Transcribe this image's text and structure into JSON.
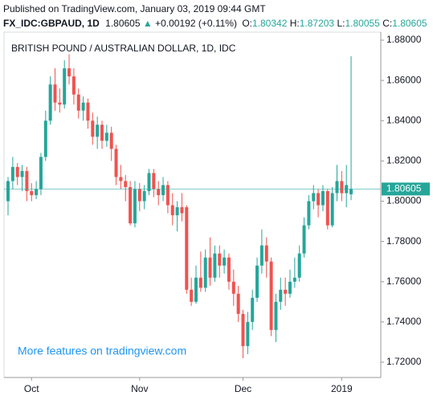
{
  "header": {
    "published": "Published on TradingView.com, January 03, 2019 09:44 GMT",
    "symbol": "FX_IDC:GBPAUD, 1D",
    "price": "1.80605",
    "arrow": "▲",
    "change": "+0.00192 (+0.11%)",
    "ohlc": [
      {
        "label": "O:",
        "value": "1.80342"
      },
      {
        "label": "H:",
        "value": "1.87203"
      },
      {
        "label": "L:",
        "value": "1.80055"
      },
      {
        "label": "C:",
        "value": "1.80605"
      }
    ]
  },
  "chart_data": {
    "type": "candlestick",
    "title": "BRITISH POUND / AUSTRALIAN DOLLAR, 1D, IDC",
    "watermark": "More features on tradingview.com",
    "up_color": "#26a69a",
    "down_color": "#ef5350",
    "categories": [
      null,
      null,
      null,
      null,
      null,
      "Oct",
      null,
      null,
      null,
      null,
      null,
      null,
      null,
      null,
      null,
      null,
      null,
      null,
      null,
      null,
      null,
      null,
      null,
      null,
      null,
      null,
      null,
      null,
      "Nov",
      null,
      null,
      null,
      null,
      null,
      null,
      null,
      null,
      null,
      null,
      null,
      null,
      null,
      null,
      null,
      null,
      null,
      null,
      null,
      null,
      null,
      "Dec",
      null,
      null,
      null,
      null,
      null,
      null,
      null,
      null,
      null,
      null,
      null,
      null,
      null,
      null,
      null,
      null,
      null,
      null,
      null,
      null,
      "2019",
      null,
      null
    ],
    "open": [
      1.8,
      1.81,
      1.817,
      1.812,
      1.815,
      1.805,
      1.803,
      1.806,
      1.822,
      1.84,
      1.858,
      1.849,
      1.848,
      1.866,
      1.862,
      1.853,
      1.845,
      1.849,
      1.84,
      1.832,
      1.838,
      1.83,
      1.834,
      1.826,
      1.812,
      1.81,
      1.807,
      1.789,
      1.806,
      1.8,
      1.805,
      1.814,
      1.806,
      1.803,
      1.808,
      1.798,
      1.793,
      1.797,
      1.797,
      1.756,
      1.75,
      1.762,
      1.757,
      1.772,
      1.762,
      1.774,
      1.768,
      1.772,
      1.76,
      1.754,
      1.744,
      1.728,
      1.74,
      1.752,
      1.768,
      1.778,
      1.77,
      1.736,
      1.75,
      1.756,
      1.754,
      1.76,
      1.762,
      1.774,
      1.788,
      1.8,
      1.804,
      1.798,
      1.805,
      1.788,
      1.804,
      1.81,
      1.804,
      1.80342
    ],
    "high": [
      1.812,
      1.822,
      1.819,
      1.818,
      1.817,
      1.809,
      1.81,
      1.824,
      1.845,
      1.862,
      1.866,
      1.856,
      1.87,
      1.873,
      1.866,
      1.856,
      1.852,
      1.851,
      1.844,
      1.842,
      1.84,
      1.838,
      1.837,
      1.828,
      1.818,
      1.813,
      1.81,
      1.81,
      1.809,
      1.808,
      1.816,
      1.816,
      1.81,
      1.812,
      1.81,
      1.804,
      1.8,
      1.804,
      1.798,
      1.762,
      1.768,
      1.775,
      1.776,
      1.782,
      1.778,
      1.778,
      1.776,
      1.774,
      1.766,
      1.758,
      1.746,
      1.745,
      1.756,
      1.772,
      1.786,
      1.782,
      1.772,
      1.754,
      1.762,
      1.762,
      1.766,
      1.772,
      1.778,
      1.792,
      1.803,
      1.808,
      1.806,
      1.808,
      1.806,
      1.807,
      1.818,
      1.815,
      1.818,
      1.87203
    ],
    "low": [
      1.793,
      1.806,
      1.808,
      1.805,
      1.8,
      1.8,
      1.801,
      1.803,
      1.82,
      1.838,
      1.845,
      1.844,
      1.846,
      1.858,
      1.848,
      1.841,
      1.84,
      1.836,
      1.828,
      1.826,
      1.826,
      1.827,
      1.82,
      1.808,
      1.806,
      1.8,
      1.788,
      1.787,
      1.795,
      1.796,
      1.803,
      1.802,
      1.798,
      1.8,
      1.794,
      1.788,
      1.785,
      1.79,
      1.754,
      1.748,
      1.749,
      1.755,
      1.755,
      1.758,
      1.76,
      1.762,
      1.764,
      1.756,
      1.748,
      1.74,
      1.722,
      1.724,
      1.736,
      1.75,
      1.764,
      1.762,
      1.733,
      1.73,
      1.746,
      1.748,
      1.752,
      1.757,
      1.76,
      1.772,
      1.786,
      1.796,
      1.792,
      1.795,
      1.786,
      1.787,
      1.8,
      1.8,
      1.797,
      1.80055
    ],
    "close": [
      1.81,
      1.817,
      1.812,
      1.815,
      1.805,
      1.803,
      1.806,
      1.822,
      1.84,
      1.858,
      1.849,
      1.848,
      1.866,
      1.862,
      1.853,
      1.845,
      1.849,
      1.84,
      1.832,
      1.838,
      1.83,
      1.834,
      1.826,
      1.812,
      1.81,
      1.807,
      1.789,
      1.806,
      1.8,
      1.805,
      1.814,
      1.806,
      1.803,
      1.808,
      1.798,
      1.793,
      1.797,
      1.794,
      1.756,
      1.75,
      1.762,
      1.757,
      1.772,
      1.762,
      1.774,
      1.768,
      1.772,
      1.76,
      1.754,
      1.744,
      1.728,
      1.74,
      1.752,
      1.768,
      1.778,
      1.77,
      1.736,
      1.75,
      1.756,
      1.754,
      1.76,
      1.762,
      1.774,
      1.788,
      1.8,
      1.804,
      1.798,
      1.805,
      1.788,
      1.804,
      1.81,
      1.804,
      1.808,
      1.80605
    ],
    "last_value": 1.80605,
    "ylim": [
      1.7124,
      1.884
    ],
    "yticks": [
      {
        "value": 1.72,
        "label": "1.72000"
      },
      {
        "value": 1.74,
        "label": "1.74000"
      },
      {
        "value": 1.76,
        "label": "1.76000"
      },
      {
        "value": 1.78,
        "label": "1.78000"
      },
      {
        "value": 1.8,
        "label": "1.80000"
      },
      {
        "value": 1.82,
        "label": "1.82000"
      },
      {
        "value": 1.84,
        "label": "1.84000"
      },
      {
        "value": 1.86,
        "label": "1.86000"
      },
      {
        "value": 1.88,
        "label": "1.88000"
      }
    ]
  }
}
